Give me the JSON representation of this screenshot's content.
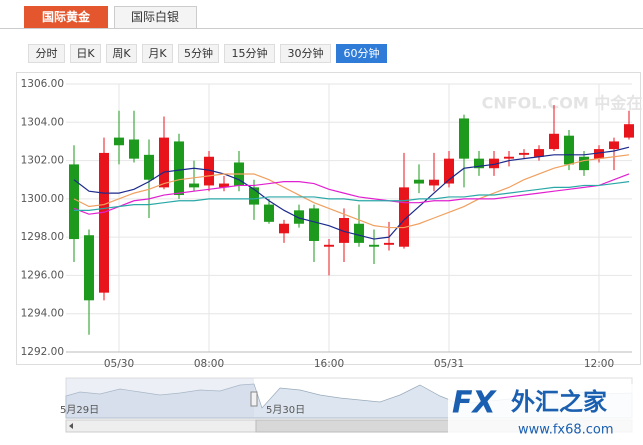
{
  "tabs": [
    "国际黄金",
    "国际白银"
  ],
  "periods": [
    "分时",
    "日K",
    "周K",
    "月K",
    "5分钟",
    "15分钟",
    "30分钟",
    "60分钟"
  ],
  "active_period": 7,
  "watermark": "CNFOL.COM 中金在线",
  "logo": {
    "mark": "FX",
    "name": "外汇之家",
    "url": "www.fx68.com"
  },
  "navigator": {
    "labels": [
      "5月29日",
      "5月30日"
    ]
  },
  "chart_data": {
    "type": "candlestick",
    "categories": [
      null,
      null,
      null,
      "05/30",
      null,
      null,
      null,
      null,
      null,
      "08:00",
      null,
      null,
      null,
      null,
      null,
      null,
      null,
      "16:00",
      null,
      null,
      null,
      null,
      null,
      null,
      null,
      "05/31",
      null,
      null,
      null,
      null,
      null,
      null,
      null,
      null,
      null,
      "12:00",
      null,
      null
    ],
    "open": [
      1301.8,
      1298.1,
      1295.1,
      1303.2,
      1303.1,
      1302.3,
      1300.6,
      1303.0,
      1300.8,
      1300.7,
      1300.6,
      1301.9,
      1300.6,
      1299.7,
      1298.2,
      1299.4,
      1299.5,
      1297.5,
      1297.7,
      1298.7,
      1297.6,
      1297.6,
      1297.5,
      1301.0,
      1300.7,
      1300.8,
      1304.2,
      1302.1,
      1301.6,
      1302.1,
      1302.3,
      1302.2,
      1302.6,
      1303.3,
      1302.2,
      1302.1,
      1302.6,
      1303.2
    ],
    "close": [
      1297.9,
      1294.7,
      1302.4,
      1302.8,
      1302.1,
      1301.0,
      1303.2,
      1300.2,
      1300.6,
      1302.2,
      1300.8,
      1300.7,
      1299.7,
      1298.8,
      1298.7,
      1298.7,
      1297.8,
      1297.6,
      1299.0,
      1297.7,
      1297.5,
      1297.7,
      1300.6,
      1300.8,
      1301.0,
      1302.1,
      1302.1,
      1301.6,
      1302.1,
      1302.2,
      1302.4,
      1302.6,
      1303.4,
      1301.8,
      1301.5,
      1302.6,
      1303.0,
      1303.9
    ],
    "high": [
      1302.8,
      1298.4,
      1303.2,
      1304.6,
      1304.6,
      1303.1,
      1304.3,
      1303.4,
      1302.0,
      1302.5,
      1301.2,
      1302.5,
      1301.0,
      1300.0,
      1298.9,
      1299.7,
      1299.7,
      1297.9,
      1299.5,
      1299.7,
      1298.4,
      1298.8,
      1302.4,
      1301.8,
      1302.4,
      1302.5,
      1304.4,
      1302.5,
      1302.5,
      1302.5,
      1302.6,
      1302.8,
      1304.9,
      1303.6,
      1302.5,
      1302.8,
      1303.2,
      1304.6
    ],
    "low": [
      1296.7,
      1292.9,
      1294.7,
      1301.8,
      1301.9,
      1299.0,
      1300.5,
      1300.0,
      1300.4,
      1300.4,
      1300.4,
      1300.4,
      1298.9,
      1298.7,
      1297.7,
      1298.5,
      1296.7,
      1296.0,
      1296.7,
      1297.5,
      1296.6,
      1297.3,
      1297.4,
      1300.3,
      1300.4,
      1300.6,
      1300.6,
      1301.2,
      1301.2,
      1301.7,
      1302.1,
      1302.0,
      1302.5,
      1301.5,
      1301.2,
      1301.9,
      1301.5,
      1303.1
    ],
    "up_color": "#e8141c",
    "down_color": "#1d9a1d",
    "series": [
      {
        "color": "#1c2a8c",
        "values": [
          1301.0,
          1300.4,
          1300.3,
          1300.3,
          1300.5,
          1300.9,
          1301.4,
          1301.5,
          1301.6,
          1301.5,
          1301.3,
          1301.0,
          1300.5,
          1299.9,
          1299.4,
          1299.0,
          1298.8,
          1298.6,
          1298.3,
          1298.1,
          1297.9,
          1298.0,
          1298.9,
          1299.6,
          1300.3,
          1301.0,
          1301.6,
          1301.7,
          1301.8,
          1302.0,
          1302.1,
          1302.2,
          1302.3,
          1302.3,
          1302.3,
          1302.4,
          1302.5,
          1302.7
        ]
      },
      {
        "color": "#f0a060",
        "values": [
          1300.0,
          1299.6,
          1299.7,
          1300.0,
          1300.3,
          1300.5,
          1300.8,
          1301.0,
          1301.1,
          1301.2,
          1301.3,
          1301.3,
          1301.3,
          1301.0,
          1300.6,
          1300.2,
          1299.8,
          1299.5,
          1299.2,
          1298.9,
          1298.6,
          1298.5,
          1298.5,
          1298.7,
          1299.0,
          1299.3,
          1299.6,
          1300.0,
          1300.3,
          1300.6,
          1301.0,
          1301.3,
          1301.6,
          1301.8,
          1302.0,
          1302.1,
          1302.2,
          1302.3
        ]
      },
      {
        "color": "#e020d0",
        "values": [
          1299.5,
          1299.2,
          1299.3,
          1299.6,
          1299.9,
          1300.0,
          1300.2,
          1300.3,
          1300.4,
          1300.5,
          1300.6,
          1300.7,
          1300.7,
          1300.8,
          1300.9,
          1300.9,
          1300.8,
          1300.5,
          1300.3,
          1300.1,
          1300.0,
          1299.9,
          1299.8,
          1299.8,
          1299.9,
          1299.9,
          1300.0,
          1300.0,
          1300.0,
          1300.1,
          1300.2,
          1300.3,
          1300.4,
          1300.5,
          1300.6,
          1300.7,
          1301.0,
          1301.3
        ]
      },
      {
        "color": "#2aa8a8",
        "values": [
          1299.4,
          1299.4,
          1299.5,
          1299.6,
          1299.7,
          1299.7,
          1299.8,
          1299.9,
          1299.9,
          1300.0,
          1300.0,
          1300.0,
          1300.0,
          1300.1,
          1300.1,
          1300.1,
          1300.1,
          1300.0,
          1300.0,
          1299.9,
          1299.9,
          1299.9,
          1299.9,
          1300.0,
          1300.0,
          1300.1,
          1300.1,
          1300.2,
          1300.2,
          1300.3,
          1300.4,
          1300.5,
          1300.6,
          1300.6,
          1300.7,
          1300.7,
          1300.8,
          1300.9
        ]
      }
    ],
    "ylim": [
      1292,
      1306
    ],
    "yticks": [
      {
        "value": 1292,
        "label": "1292.00"
      },
      {
        "value": 1294,
        "label": "1294.00"
      },
      {
        "value": 1296,
        "label": "1296.00"
      },
      {
        "value": 1298,
        "label": "1298.00"
      },
      {
        "value": 1300,
        "label": "1300.00"
      },
      {
        "value": 1302,
        "label": "1302.00"
      },
      {
        "value": 1304,
        "label": "1304.00"
      },
      {
        "value": 1306,
        "label": "1306.00"
      }
    ],
    "grid": true
  }
}
